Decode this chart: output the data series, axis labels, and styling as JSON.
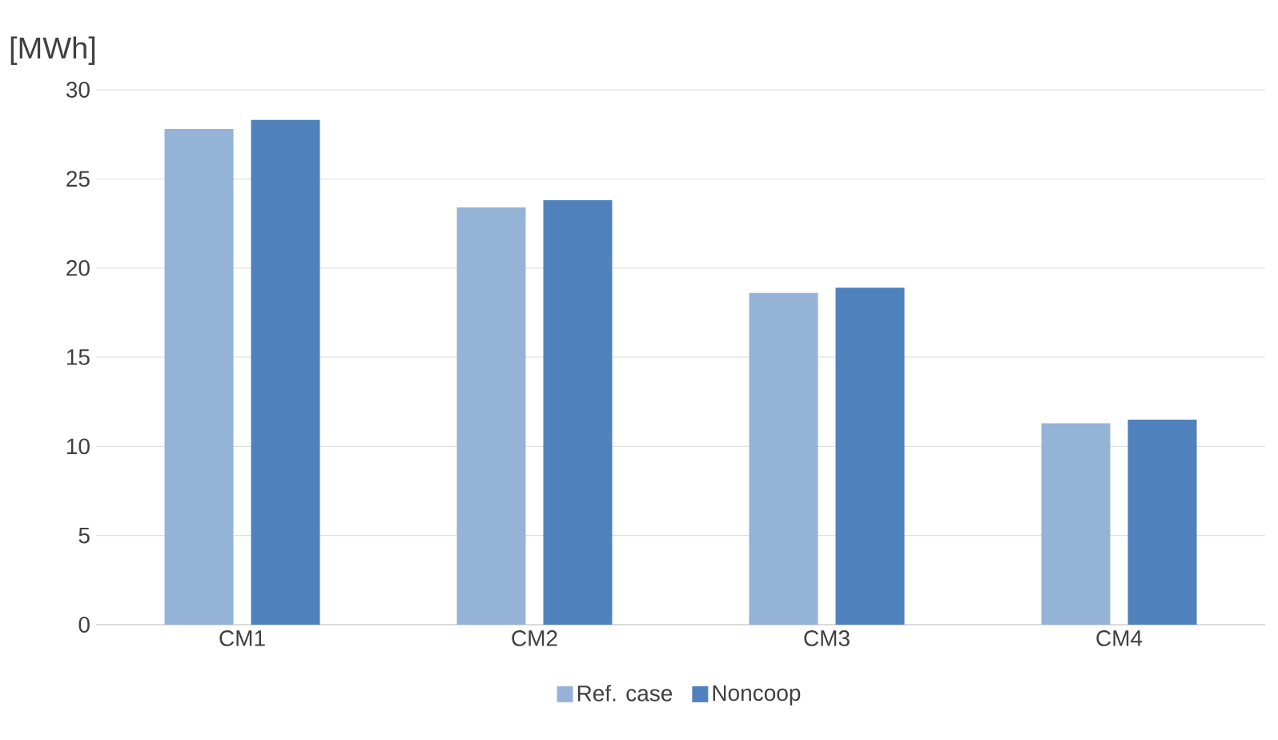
{
  "chart_data": {
    "type": "bar",
    "ylabel": "[MWh]",
    "categories": [
      "CM1",
      "CM2",
      "CM3",
      "CM4"
    ],
    "series": [
      {
        "name": "Ref. case",
        "color": "#95b3d7",
        "values": [
          27.8,
          23.4,
          18.6,
          11.3
        ]
      },
      {
        "name": "Noncoop",
        "color": "#4f81bd",
        "values": [
          28.3,
          23.8,
          18.9,
          11.5
        ]
      }
    ],
    "ylim": [
      0,
      30
    ],
    "yticks": [
      0,
      5,
      10,
      15,
      20,
      25,
      30
    ],
    "grid": "y",
    "legend": "bottom"
  }
}
